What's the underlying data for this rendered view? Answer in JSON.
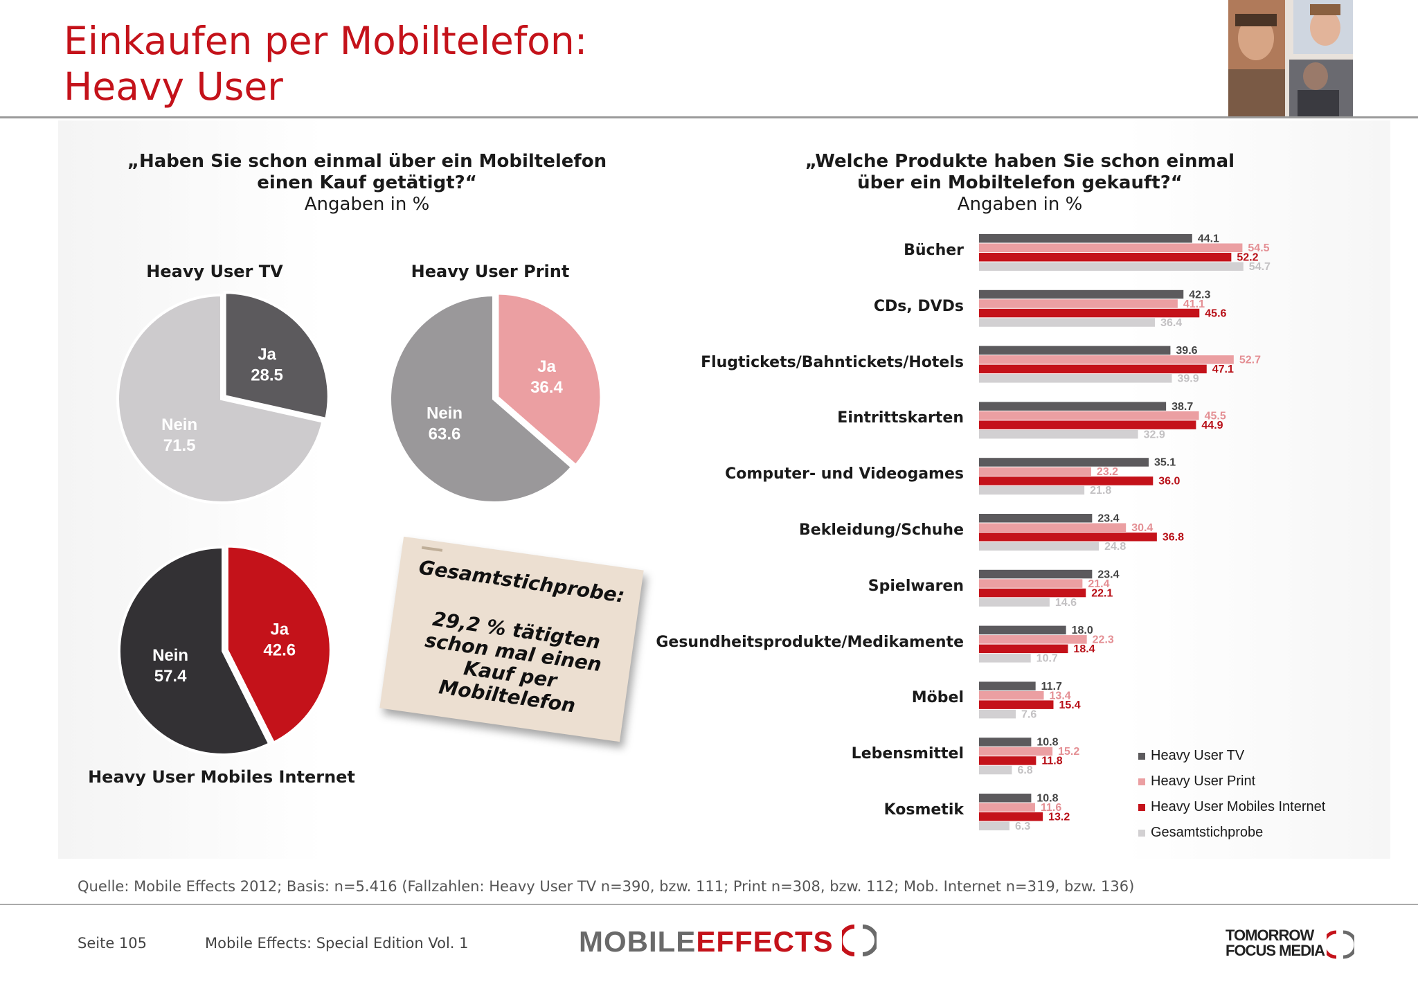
{
  "header": {
    "title_line1": "Einkaufen per Mobiltelefon:",
    "title_line2": "Heavy User"
  },
  "left_question": {
    "line1": "„Haben Sie schon einmal über ein Mobiltelefon",
    "line2": "einen Kauf getätigt?“",
    "sub": "Angaben in %"
  },
  "right_question": {
    "line1": "„Welche Produkte haben Sie schon einmal",
    "line2": "über ein Mobiltelefon gekauft?“",
    "sub": "Angaben in %"
  },
  "note": {
    "heading": "Gesamtstichprobe:",
    "line1": "29,2 % tätigten",
    "line2": "schon mal einen",
    "line3": "Kauf per",
    "line4": "Mobiltelefon"
  },
  "chart_data": [
    {
      "type": "pie",
      "title": "Heavy User TV",
      "slices": [
        {
          "label": "Ja",
          "value": 28.5,
          "color": "#5c5a5d"
        },
        {
          "label": "Nein",
          "value": 71.5,
          "color": "#cdcbcd"
        }
      ]
    },
    {
      "type": "pie",
      "title": "Heavy User Print",
      "slices": [
        {
          "label": "Ja",
          "value": 36.4,
          "color": "#eb9fa2"
        },
        {
          "label": "Nein",
          "value": 63.6,
          "color": "#9a989a"
        }
      ]
    },
    {
      "type": "pie",
      "title": "Heavy User Mobiles Internet",
      "slices": [
        {
          "label": "Ja",
          "value": 42.6,
          "color": "#c4121a"
        },
        {
          "label": "Nein",
          "value": 57.4,
          "color": "#333134"
        }
      ]
    },
    {
      "type": "bar",
      "orientation": "horizontal",
      "categories": [
        "Bücher",
        "CDs, DVDs",
        "Flugtickets/Bahntickets/Hotels",
        "Eintrittskarten",
        "Computer- und Videogames",
        "Bekleidung/Schuhe",
        "Spielwaren",
        "Gesundheitsprodukte/Medikamente",
        "Möbel",
        "Lebensmittel",
        "Kosmetik"
      ],
      "series": [
        {
          "name": "Heavy User TV",
          "color": "#5c5a5d",
          "label_color": "#444444",
          "values": [
            44.1,
            42.3,
            39.6,
            38.7,
            35.1,
            23.4,
            23.4,
            18.0,
            11.7,
            10.8,
            10.8
          ]
        },
        {
          "name": "Heavy User Print",
          "color": "#eb9fa2",
          "label_color": "#e48f94",
          "values": [
            54.5,
            41.1,
            52.7,
            45.5,
            23.2,
            30.4,
            21.4,
            22.3,
            13.4,
            15.2,
            11.6
          ]
        },
        {
          "name": "Heavy User Mobiles Internet",
          "color": "#c4121a",
          "label_color": "#b80f17",
          "values": [
            52.2,
            45.6,
            47.1,
            44.9,
            36.0,
            36.8,
            22.1,
            18.4,
            15.4,
            11.8,
            13.2
          ]
        },
        {
          "name": "Gesamtstichprobe",
          "color": "#d2d0d2",
          "label_color": "#c3c1c3",
          "values": [
            54.7,
            36.4,
            39.9,
            32.9,
            21.8,
            24.8,
            14.6,
            10.7,
            7.6,
            6.8,
            6.3
          ]
        }
      ],
      "legend_position": "bottom-right"
    }
  ],
  "source": "Quelle: Mobile Effects 2012; Basis: n=5.416 (Fallzahlen: Heavy User TV n=390, bzw. 111; Print n=308, bzw. 112; Mob. Internet n=319, bzw. 136)",
  "footer": {
    "page": "Seite 105",
    "publication": "Mobile Effects: Special Edition Vol. 1",
    "brand_mobile": "MOBILE",
    "brand_effects": "EFFECTS",
    "tfm_line1": "TOMORROW",
    "tfm_line2": "FOCUS MEDIA"
  }
}
